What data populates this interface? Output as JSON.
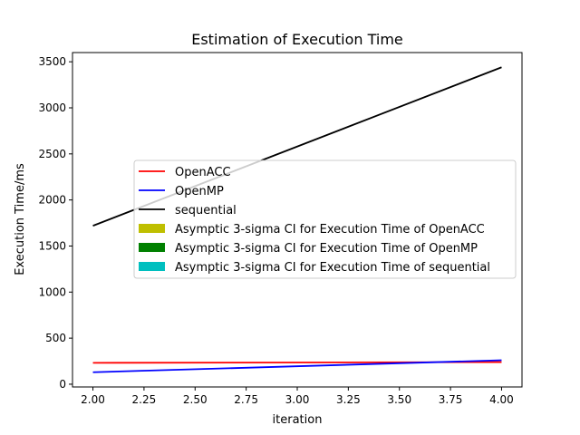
{
  "chart_data": {
    "type": "line",
    "title": "Estimation of Execution Time",
    "xlabel": "iteration",
    "ylabel": "Execution Time/ms",
    "xlim": [
      1.9,
      4.1
    ],
    "ylim": [
      -30,
      3600
    ],
    "xticks": [
      "2.00",
      "2.25",
      "2.50",
      "2.75",
      "3.00",
      "3.25",
      "3.50",
      "3.75",
      "4.00"
    ],
    "yticks": [
      "0",
      "500",
      "1000",
      "1500",
      "2000",
      "2500",
      "3000",
      "3500"
    ],
    "grid": false,
    "legend_position": "center-right",
    "series": [
      {
        "name": "OpenACC",
        "color": "#ff0000",
        "x": [
          2,
          4
        ],
        "y": [
          232,
          240
        ]
      },
      {
        "name": "OpenMP",
        "color": "#0000ff",
        "x": [
          2,
          4
        ],
        "y": [
          130,
          260
        ]
      },
      {
        "name": "sequential",
        "color": "#000000",
        "x": [
          2,
          4
        ],
        "y": [
          1720,
          3440
        ]
      }
    ],
    "confidence_bands": [
      {
        "name": "Asymptic 3-sigma CI for Execution Time of OpenACC",
        "color": "#bfbf00",
        "x": [
          2,
          4
        ],
        "lower": [
          230,
          238
        ],
        "upper": [
          234,
          242
        ]
      },
      {
        "name": "Asymptic 3-sigma CI for Execution Time of OpenMP",
        "color": "#008000",
        "x": [
          2,
          4
        ],
        "lower": [
          128,
          258
        ],
        "upper": [
          132,
          262
        ]
      },
      {
        "name": "Asymptic 3-sigma CI for Execution Time of sequential",
        "color": "#00bfbf",
        "x": [
          2,
          4
        ],
        "lower": [
          1716,
          3436
        ],
        "upper": [
          1724,
          3444
        ]
      }
    ]
  }
}
